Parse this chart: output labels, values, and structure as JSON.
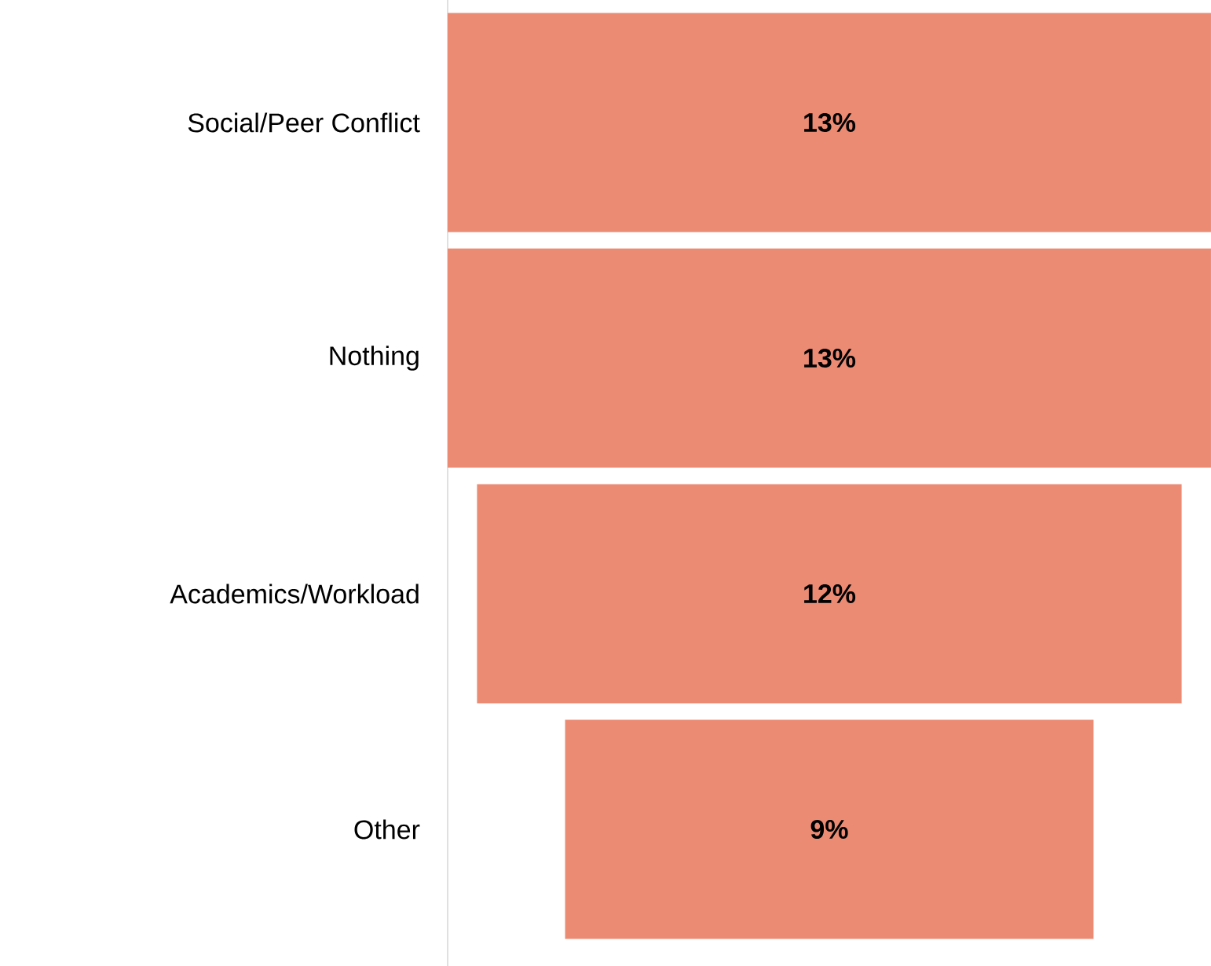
{
  "chart_data": {
    "type": "other",
    "categories": [
      "Social/Peer Conflict",
      "Nothing",
      "Academics/Workload",
      "Other"
    ],
    "values": [
      13,
      13,
      12,
      9
    ],
    "value_labels": [
      "13%",
      "13%",
      "12%",
      "9%"
    ],
    "color": "#ec8b74"
  }
}
